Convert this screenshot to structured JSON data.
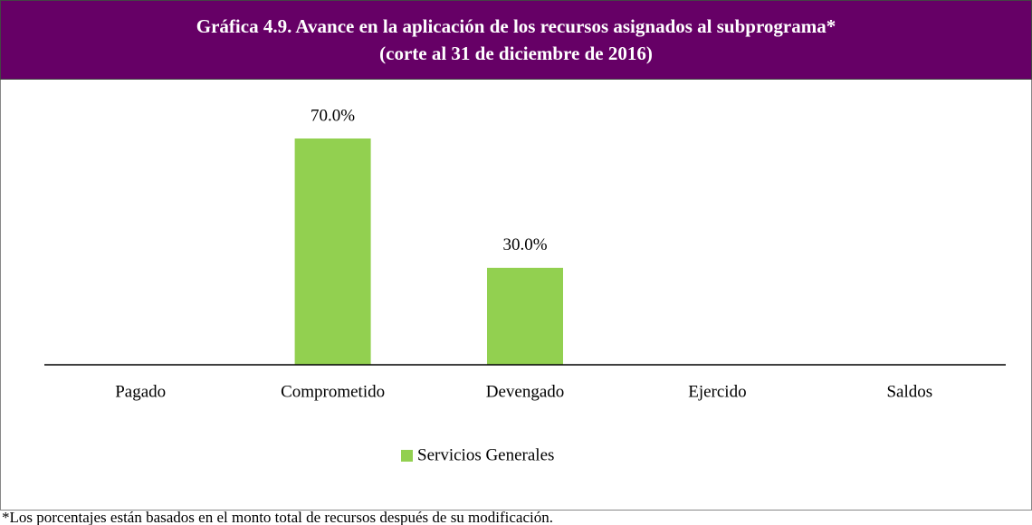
{
  "chart_data": {
    "type": "bar",
    "title": "Gráfica 4.9. Avance en la aplicación de los recursos asignados al subprograma*",
    "subtitle": "(corte al 31 de diciembre  de 2016)",
    "categories": [
      "Pagado",
      "Comprometido",
      "Devengado",
      "Ejercido",
      "Saldos"
    ],
    "series": [
      {
        "name": "Servicios Generales",
        "color": "#92d050",
        "values": [
          null,
          70,
          30,
          null,
          null
        ],
        "value_labels": [
          null,
          "70.0%",
          "30.0%",
          null,
          null
        ]
      }
    ],
    "legend": "bottom",
    "footnote": "*Los porcentajes están basados en el monto total de recursos después de su modificación."
  }
}
